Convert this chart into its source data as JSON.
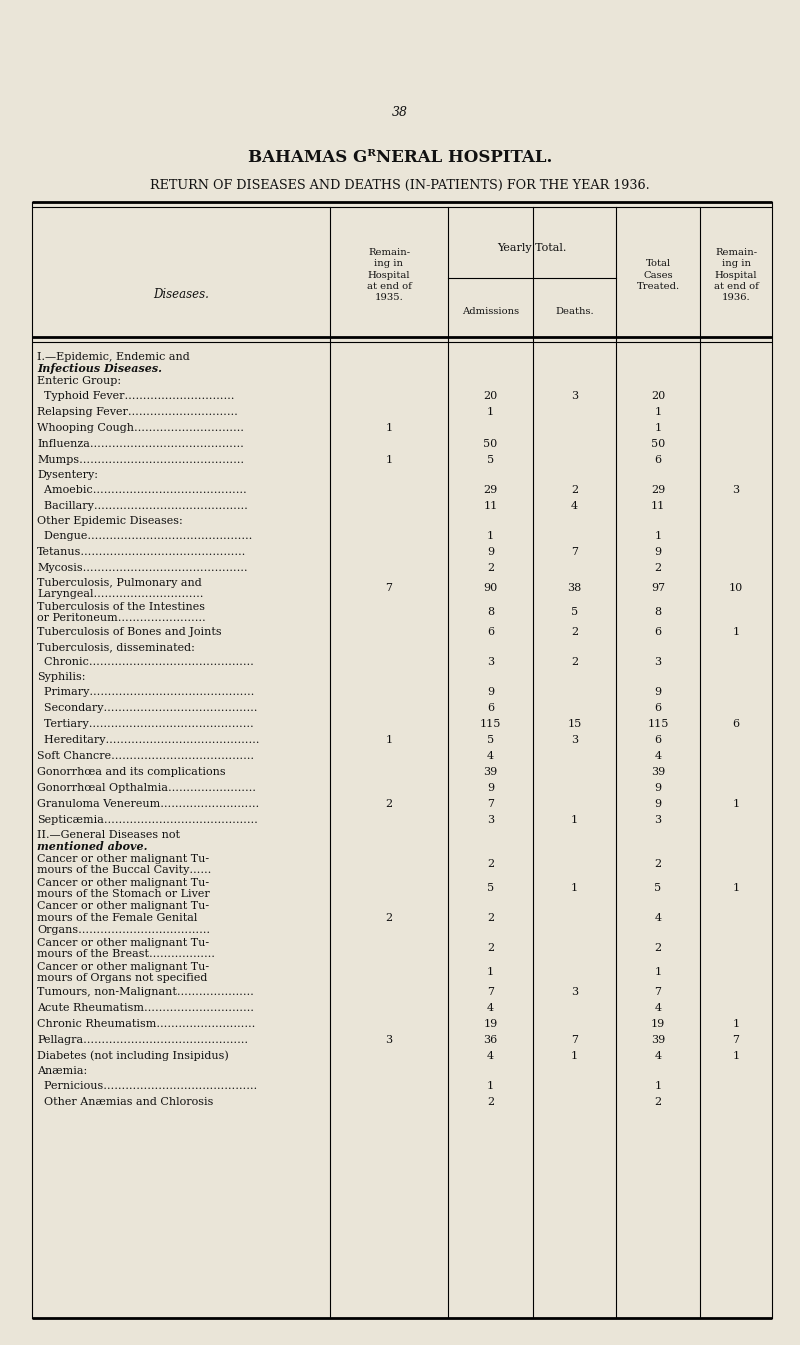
{
  "page_number": "38",
  "title1": "BAHAMAS GᴿNERAL HOSPITAL.",
  "title2": "RETURN OF DISEASES AND DEATHS (IN-PATIENTS) FOR THE YEAR 1936.",
  "background_color": "#EAE5D8",
  "text_color": "#111111",
  "rows": [
    {
      "disease": "I.—Epidemic, Endemic and",
      "line2": "    Infectious Diseases.",
      "remain_1935": "",
      "admissions": "",
      "deaths": "",
      "total": "",
      "remain_1936": "",
      "type": "section"
    },
    {
      "disease": "Enteric Group:",
      "line2": "",
      "remain_1935": "",
      "admissions": "",
      "deaths": "",
      "total": "",
      "remain_1936": "",
      "type": "subheader"
    },
    {
      "disease": "  Typhoid Fever…………………………",
      "line2": "",
      "remain_1935": "",
      "admissions": "20",
      "deaths": "3",
      "total": "20",
      "remain_1936": "",
      "type": "data"
    },
    {
      "disease": "Relapsing Fever…………………………",
      "line2": "",
      "remain_1935": "",
      "admissions": "1",
      "deaths": "",
      "total": "1",
      "remain_1936": "",
      "type": "data"
    },
    {
      "disease": "Whooping Cough…………………………",
      "line2": "",
      "remain_1935": "1",
      "admissions": "",
      "deaths": "",
      "total": "1",
      "remain_1936": "",
      "type": "data"
    },
    {
      "disease": "Influenza……………………………………",
      "line2": "",
      "remain_1935": "",
      "admissions": "50",
      "deaths": "",
      "total": "50",
      "remain_1936": "",
      "type": "data"
    },
    {
      "disease": "Mumps………………………………………",
      "line2": "",
      "remain_1935": "1",
      "admissions": "5",
      "deaths": "",
      "total": "6",
      "remain_1936": "",
      "type": "data"
    },
    {
      "disease": "Dysentery:",
      "line2": "",
      "remain_1935": "",
      "admissions": "",
      "deaths": "",
      "total": "",
      "remain_1936": "",
      "type": "subheader"
    },
    {
      "disease": "  Amoebic……………………………………",
      "line2": "",
      "remain_1935": "",
      "admissions": "29",
      "deaths": "2",
      "total": "29",
      "remain_1936": "3",
      "type": "data"
    },
    {
      "disease": "  Bacillary……………………………………",
      "line2": "",
      "remain_1935": "",
      "admissions": "11",
      "deaths": "4",
      "total": "11",
      "remain_1936": "",
      "type": "data"
    },
    {
      "disease": "Other Epidemic Diseases:",
      "line2": "",
      "remain_1935": "",
      "admissions": "",
      "deaths": "",
      "total": "",
      "remain_1936": "",
      "type": "subheader"
    },
    {
      "disease": "  Dengue………………………………………",
      "line2": "",
      "remain_1935": "",
      "admissions": "1",
      "deaths": "",
      "total": "1",
      "remain_1936": "",
      "type": "data"
    },
    {
      "disease": "Tetanus………………………………………",
      "line2": "",
      "remain_1935": "",
      "admissions": "9",
      "deaths": "7",
      "total": "9",
      "remain_1936": "",
      "type": "data"
    },
    {
      "disease": "Mycosis………………………………………",
      "line2": "",
      "remain_1935": "",
      "admissions": "2",
      "deaths": "",
      "total": "2",
      "remain_1936": "",
      "type": "data"
    },
    {
      "disease": "Tuberculosis, Pulmonary and",
      "line2": "    Laryngeal…………………………",
      "remain_1935": "7",
      "admissions": "90",
      "deaths": "38",
      "total": "97",
      "remain_1936": "10",
      "type": "data2"
    },
    {
      "disease": "Tuberculosis of the Intestines",
      "line2": "    or Peritoneum……………………",
      "remain_1935": "",
      "admissions": "8",
      "deaths": "5",
      "total": "8",
      "remain_1936": "",
      "type": "data2"
    },
    {
      "disease": "Tuberculosis of Bones and Joints",
      "line2": "",
      "remain_1935": "",
      "admissions": "6",
      "deaths": "2",
      "total": "6",
      "remain_1936": "1",
      "type": "data"
    },
    {
      "disease": "Tuberculosis, disseminated:",
      "line2": "",
      "remain_1935": "",
      "admissions": "",
      "deaths": "",
      "total": "",
      "remain_1936": "",
      "type": "subheader"
    },
    {
      "disease": "  Chronic………………………………………",
      "line2": "",
      "remain_1935": "",
      "admissions": "3",
      "deaths": "2",
      "total": "3",
      "remain_1936": "",
      "type": "data"
    },
    {
      "disease": "Syphilis:",
      "line2": "",
      "remain_1935": "",
      "admissions": "",
      "deaths": "",
      "total": "",
      "remain_1936": "",
      "type": "subheader"
    },
    {
      "disease": "  Primary………………………………………",
      "line2": "",
      "remain_1935": "",
      "admissions": "9",
      "deaths": "",
      "total": "9",
      "remain_1936": "",
      "type": "data"
    },
    {
      "disease": "  Secondary……………………………………",
      "line2": "",
      "remain_1935": "",
      "admissions": "6",
      "deaths": "",
      "total": "6",
      "remain_1936": "",
      "type": "data"
    },
    {
      "disease": "  Tertiary………………………………………",
      "line2": "",
      "remain_1935": "",
      "admissions": "115",
      "deaths": "15",
      "total": "115",
      "remain_1936": "6",
      "type": "data"
    },
    {
      "disease": "  Hereditary……………………………………",
      "line2": "",
      "remain_1935": "1",
      "admissions": "5",
      "deaths": "3",
      "total": "6",
      "remain_1936": "",
      "type": "data"
    },
    {
      "disease": "Soft Chancre…………………………………",
      "line2": "",
      "remain_1935": "",
      "admissions": "4",
      "deaths": "",
      "total": "4",
      "remain_1936": "",
      "type": "data"
    },
    {
      "disease": "Gonorrhœa and its complications",
      "line2": "",
      "remain_1935": "",
      "admissions": "39",
      "deaths": "",
      "total": "39",
      "remain_1936": "",
      "type": "data"
    },
    {
      "disease": "Gonorrhœal Opthalmia……………………",
      "line2": "",
      "remain_1935": "",
      "admissions": "9",
      "deaths": "",
      "total": "9",
      "remain_1936": "",
      "type": "data"
    },
    {
      "disease": "Granuloma Venereum………………………",
      "line2": "",
      "remain_1935": "2",
      "admissions": "7",
      "deaths": "",
      "total": "9",
      "remain_1936": "1",
      "type": "data"
    },
    {
      "disease": "Septicæmia……………………………………",
      "line2": "",
      "remain_1935": "",
      "admissions": "3",
      "deaths": "1",
      "total": "3",
      "remain_1936": "",
      "type": "data"
    },
    {
      "disease": "II.—General Diseases not",
      "line2": "    mentioned above.",
      "remain_1935": "",
      "admissions": "",
      "deaths": "",
      "total": "",
      "remain_1936": "",
      "type": "section"
    },
    {
      "disease": "Cancer or other malignant Tu-",
      "line2": "    mours of the Buccal Cavity……",
      "remain_1935": "",
      "admissions": "2",
      "deaths": "",
      "total": "2",
      "remain_1936": "",
      "type": "data2"
    },
    {
      "disease": "Cancer or other malignant Tu-",
      "line2": "    mours of the Stomach or Liver",
      "remain_1935": "",
      "admissions": "5",
      "deaths": "1",
      "total": "5",
      "remain_1936": "1",
      "type": "data2"
    },
    {
      "disease": "Cancer or other malignant Tu-",
      "line2": "    mours of the Female Genital",
      "line3": "    Organs………………………………",
      "remain_1935": "2",
      "admissions": "2",
      "deaths": "",
      "total": "4",
      "remain_1936": "",
      "type": "data3"
    },
    {
      "disease": "Cancer or other malignant Tu-",
      "line2": "    mours of the Breast………………",
      "remain_1935": "",
      "admissions": "2",
      "deaths": "",
      "total": "2",
      "remain_1936": "",
      "type": "data2"
    },
    {
      "disease": "Cancer or other malignant Tu-",
      "line2": "    mours of Organs not specified",
      "remain_1935": "",
      "admissions": "1",
      "deaths": "",
      "total": "1",
      "remain_1936": "",
      "type": "data2"
    },
    {
      "disease": "Tumours, non-Malignant…………………",
      "line2": "",
      "remain_1935": "",
      "admissions": "7",
      "deaths": "3",
      "total": "7",
      "remain_1936": "",
      "type": "data"
    },
    {
      "disease": "Acute Rheumatism…………………………",
      "line2": "",
      "remain_1935": "",
      "admissions": "4",
      "deaths": "",
      "total": "4",
      "remain_1936": "",
      "type": "data"
    },
    {
      "disease": "Chronic Rheumatism………………………",
      "line2": "",
      "remain_1935": "",
      "admissions": "19",
      "deaths": "",
      "total": "19",
      "remain_1936": "1",
      "type": "data"
    },
    {
      "disease": "Pellagra………………………………………",
      "line2": "",
      "remain_1935": "3",
      "admissions": "36",
      "deaths": "7",
      "total": "39",
      "remain_1936": "7",
      "type": "data"
    },
    {
      "disease": "Diabetes (not including Insipidus)",
      "line2": "",
      "remain_1935": "",
      "admissions": "4",
      "deaths": "1",
      "total": "4",
      "remain_1936": "1",
      "type": "data"
    },
    {
      "disease": "Anæmia:",
      "line2": "",
      "remain_1935": "",
      "admissions": "",
      "deaths": "",
      "total": "",
      "remain_1936": "",
      "type": "subheader"
    },
    {
      "disease": "  Pernicious……………………………………",
      "line2": "",
      "remain_1935": "",
      "admissions": "1",
      "deaths": "",
      "total": "1",
      "remain_1936": "",
      "type": "data"
    },
    {
      "disease": "  Other Anæmias and Chlorosis",
      "line2": "",
      "remain_1935": "",
      "admissions": "2",
      "deaths": "",
      "total": "2",
      "remain_1936": "",
      "type": "data"
    }
  ]
}
